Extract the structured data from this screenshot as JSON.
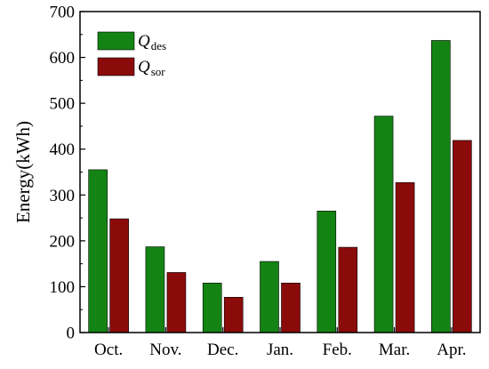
{
  "chart_data": {
    "type": "bar",
    "categories": [
      "Oct.",
      "Nov.",
      "Dec.",
      "Jan.",
      "Feb.",
      "Mar.",
      "Apr."
    ],
    "series": [
      {
        "name": "Q_des",
        "symbol": "Q",
        "subscript": "des",
        "color": "#138413",
        "values": [
          355,
          187,
          108,
          155,
          265,
          472,
          637
        ]
      },
      {
        "name": "Q_sor",
        "symbol": "Q",
        "subscript": "sor",
        "color": "#8b0b0b",
        "values": [
          248,
          131,
          77,
          108,
          186,
          327,
          419
        ]
      }
    ],
    "ylabel": "Energy(kWh)",
    "xlabel": "",
    "title": "",
    "ylim": [
      0,
      700
    ],
    "yticks": [
      0,
      100,
      200,
      300,
      400,
      500,
      600,
      700
    ],
    "grid": false,
    "legend_position": "top-left"
  }
}
